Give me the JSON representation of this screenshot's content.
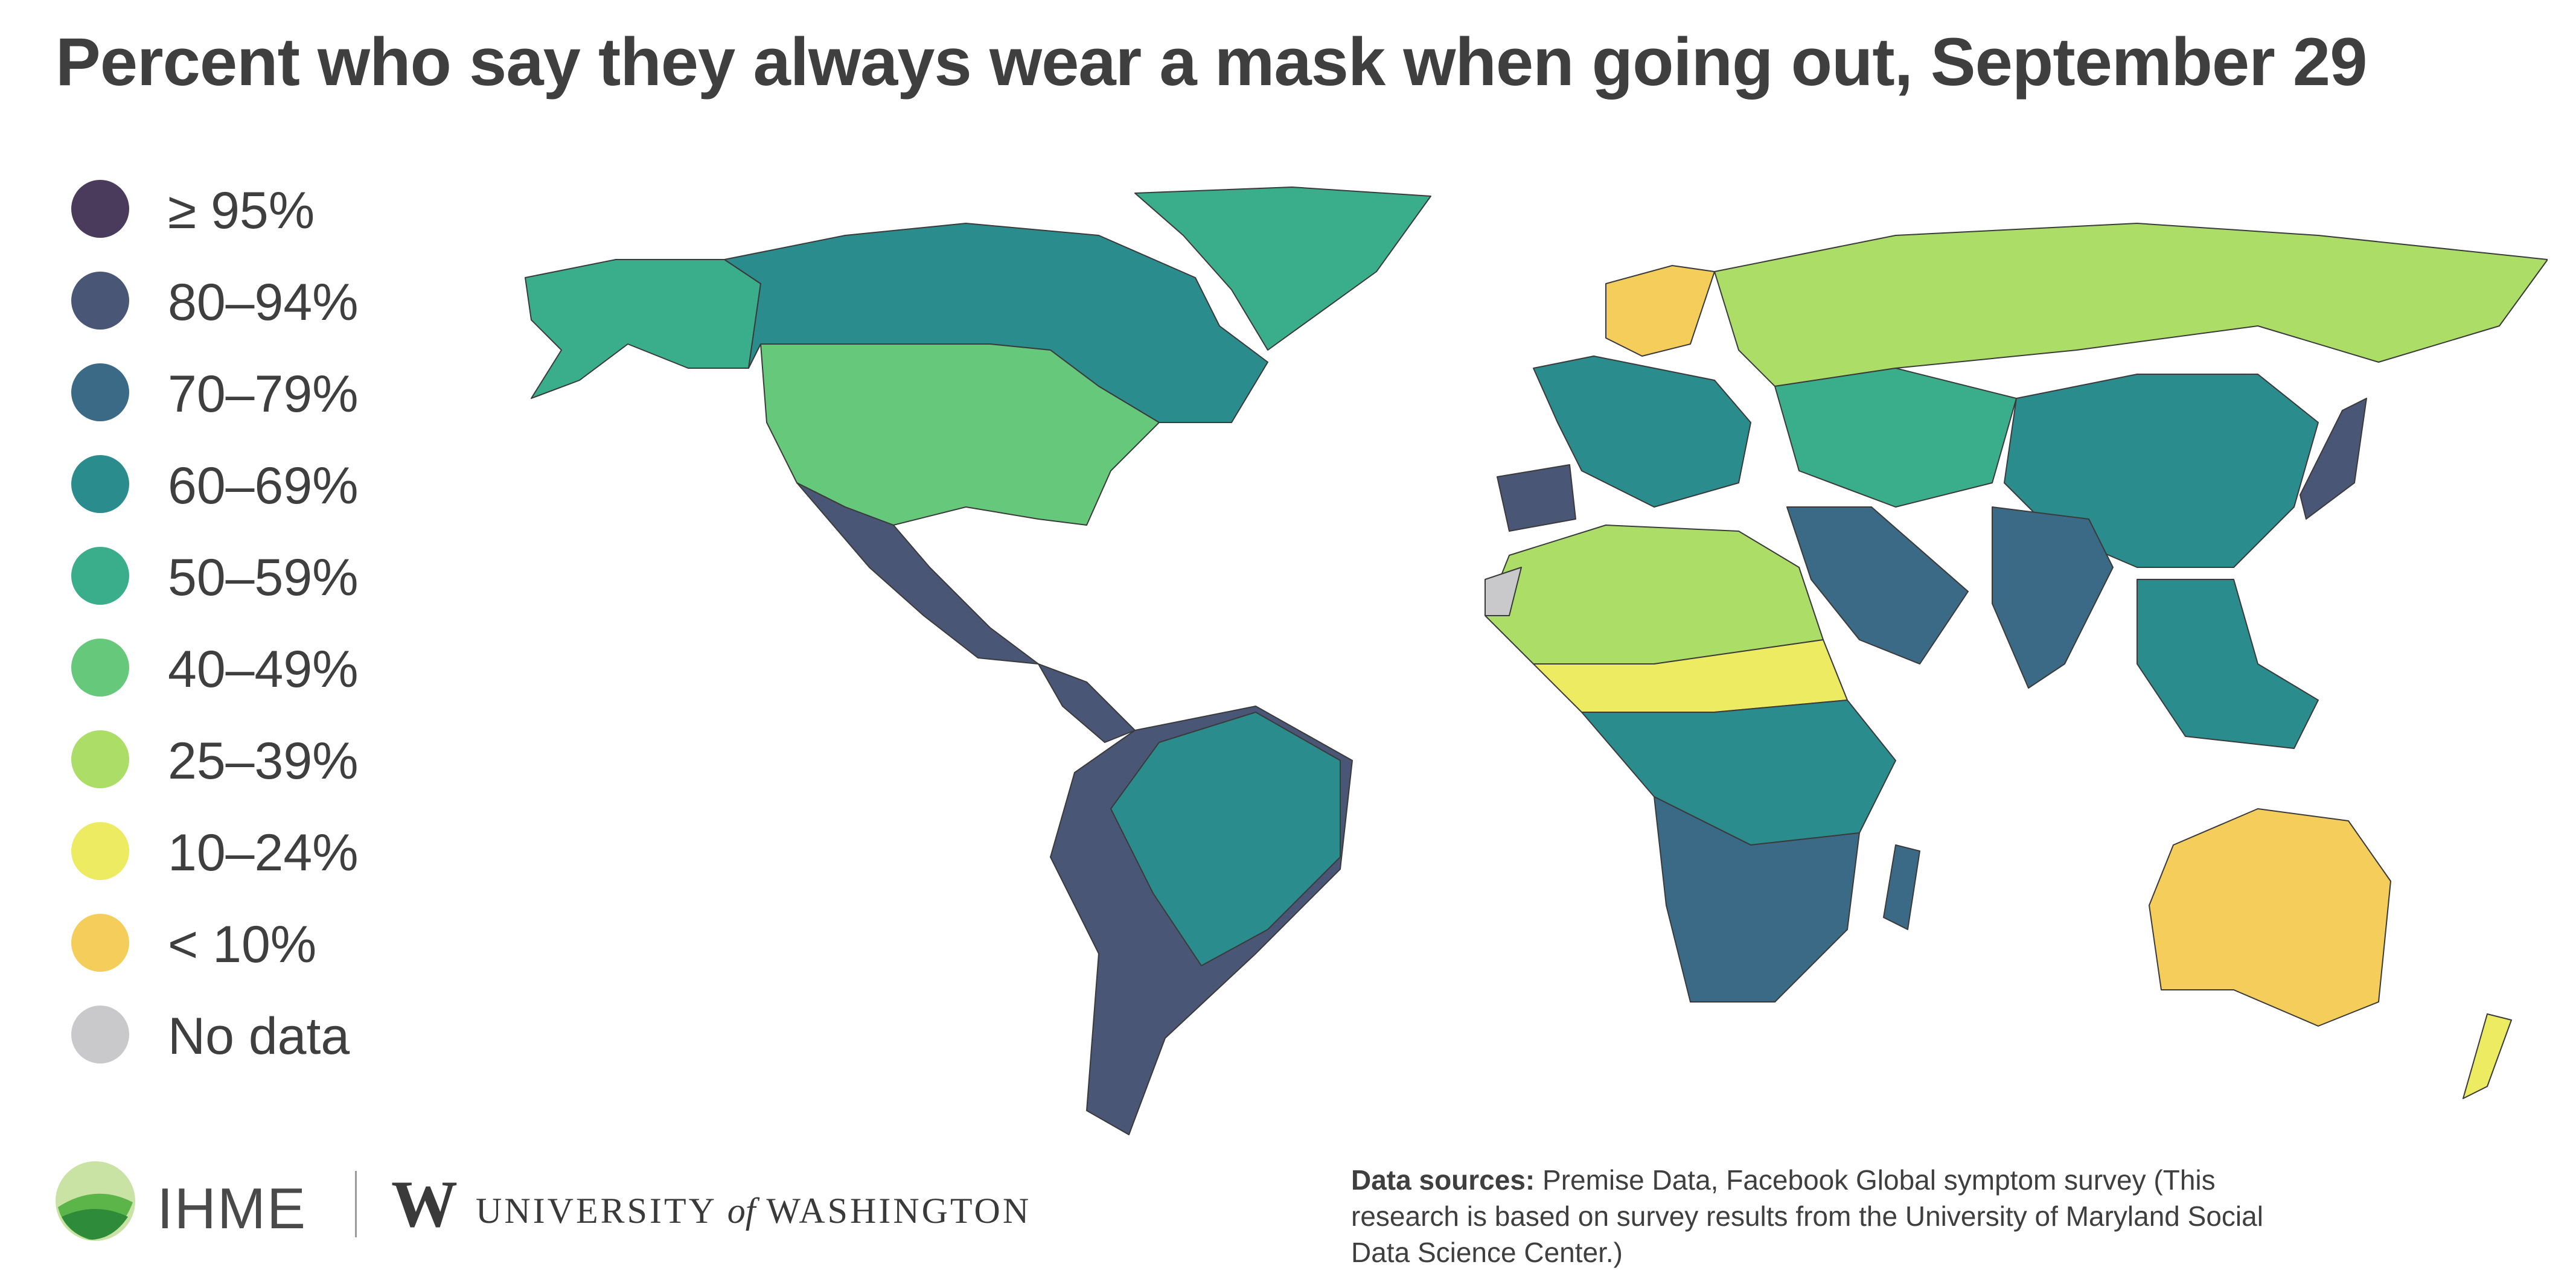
{
  "title": "Percent who say they always wear a mask when going out, September 29",
  "legend": [
    {
      "label": "≥ 95%",
      "color": "#4a3b5c"
    },
    {
      "label": "80–94%",
      "color": "#4a5676"
    },
    {
      "label": "70–79%",
      "color": "#3b6a86"
    },
    {
      "label": "60–69%",
      "color": "#2b8c8e"
    },
    {
      "label": "50–59%",
      "color": "#3aae8a"
    },
    {
      "label": "40–49%",
      "color": "#65c87b"
    },
    {
      "label": "25–39%",
      "color": "#abdd67"
    },
    {
      "label": "10–24%",
      "color": "#eceb62"
    },
    {
      "label": "< 10%",
      "color": "#f5cd5b"
    },
    {
      "label": "No data",
      "color": "#c9c9cb"
    }
  ],
  "regions": [
    {
      "name": "Alaska",
      "class": "50–59%"
    },
    {
      "name": "Canada",
      "class": "60–69%"
    },
    {
      "name": "Greenland",
      "class": "50–59%"
    },
    {
      "name": "United States",
      "class": "40–49%"
    },
    {
      "name": "Mexico",
      "class": "80–94%"
    },
    {
      "name": "Central America",
      "class": "80–94%"
    },
    {
      "name": "South America",
      "class": "80–94%"
    },
    {
      "name": "Brazil",
      "class": "60–69%"
    },
    {
      "name": "Iberia",
      "class": "80–94%"
    },
    {
      "name": "Western Europe",
      "class": "60–69%"
    },
    {
      "name": "Scandinavia",
      "class": "< 10%"
    },
    {
      "name": "Russia",
      "class": "25–39%"
    },
    {
      "name": "North Africa",
      "class": "25–39%"
    },
    {
      "name": "Sahel",
      "class": "10–24%"
    },
    {
      "name": "Central Africa",
      "class": "60–69%"
    },
    {
      "name": "Southern Africa",
      "class": "70–79%"
    },
    {
      "name": "Madagascar",
      "class": "70–79%"
    },
    {
      "name": "Arabian Peninsula",
      "class": "70–79%"
    },
    {
      "name": "Central Asia",
      "class": "50–59%"
    },
    {
      "name": "China",
      "class": "60–69%"
    },
    {
      "name": "India",
      "class": "70–79%"
    },
    {
      "name": "Southeast Asia",
      "class": "60–69%"
    },
    {
      "name": "Japan",
      "class": "80–94%"
    },
    {
      "name": "Australia",
      "class": "< 10%"
    },
    {
      "name": "New Zealand",
      "class": "10–24%"
    },
    {
      "name": "Western Sahara",
      "class": "No data"
    }
  ],
  "logos": {
    "ihme": "IHME",
    "uw_mark": "W",
    "uw_text_1": "UNIVERSITY",
    "uw_text_of": "of",
    "uw_text_2": "WASHINGTON"
  },
  "sources": {
    "label": "Data sources:",
    "text": "Premise Data, Facebook Global symptom survey (This research is based on survey results from the University of Maryland Social Data Science Center.)"
  }
}
